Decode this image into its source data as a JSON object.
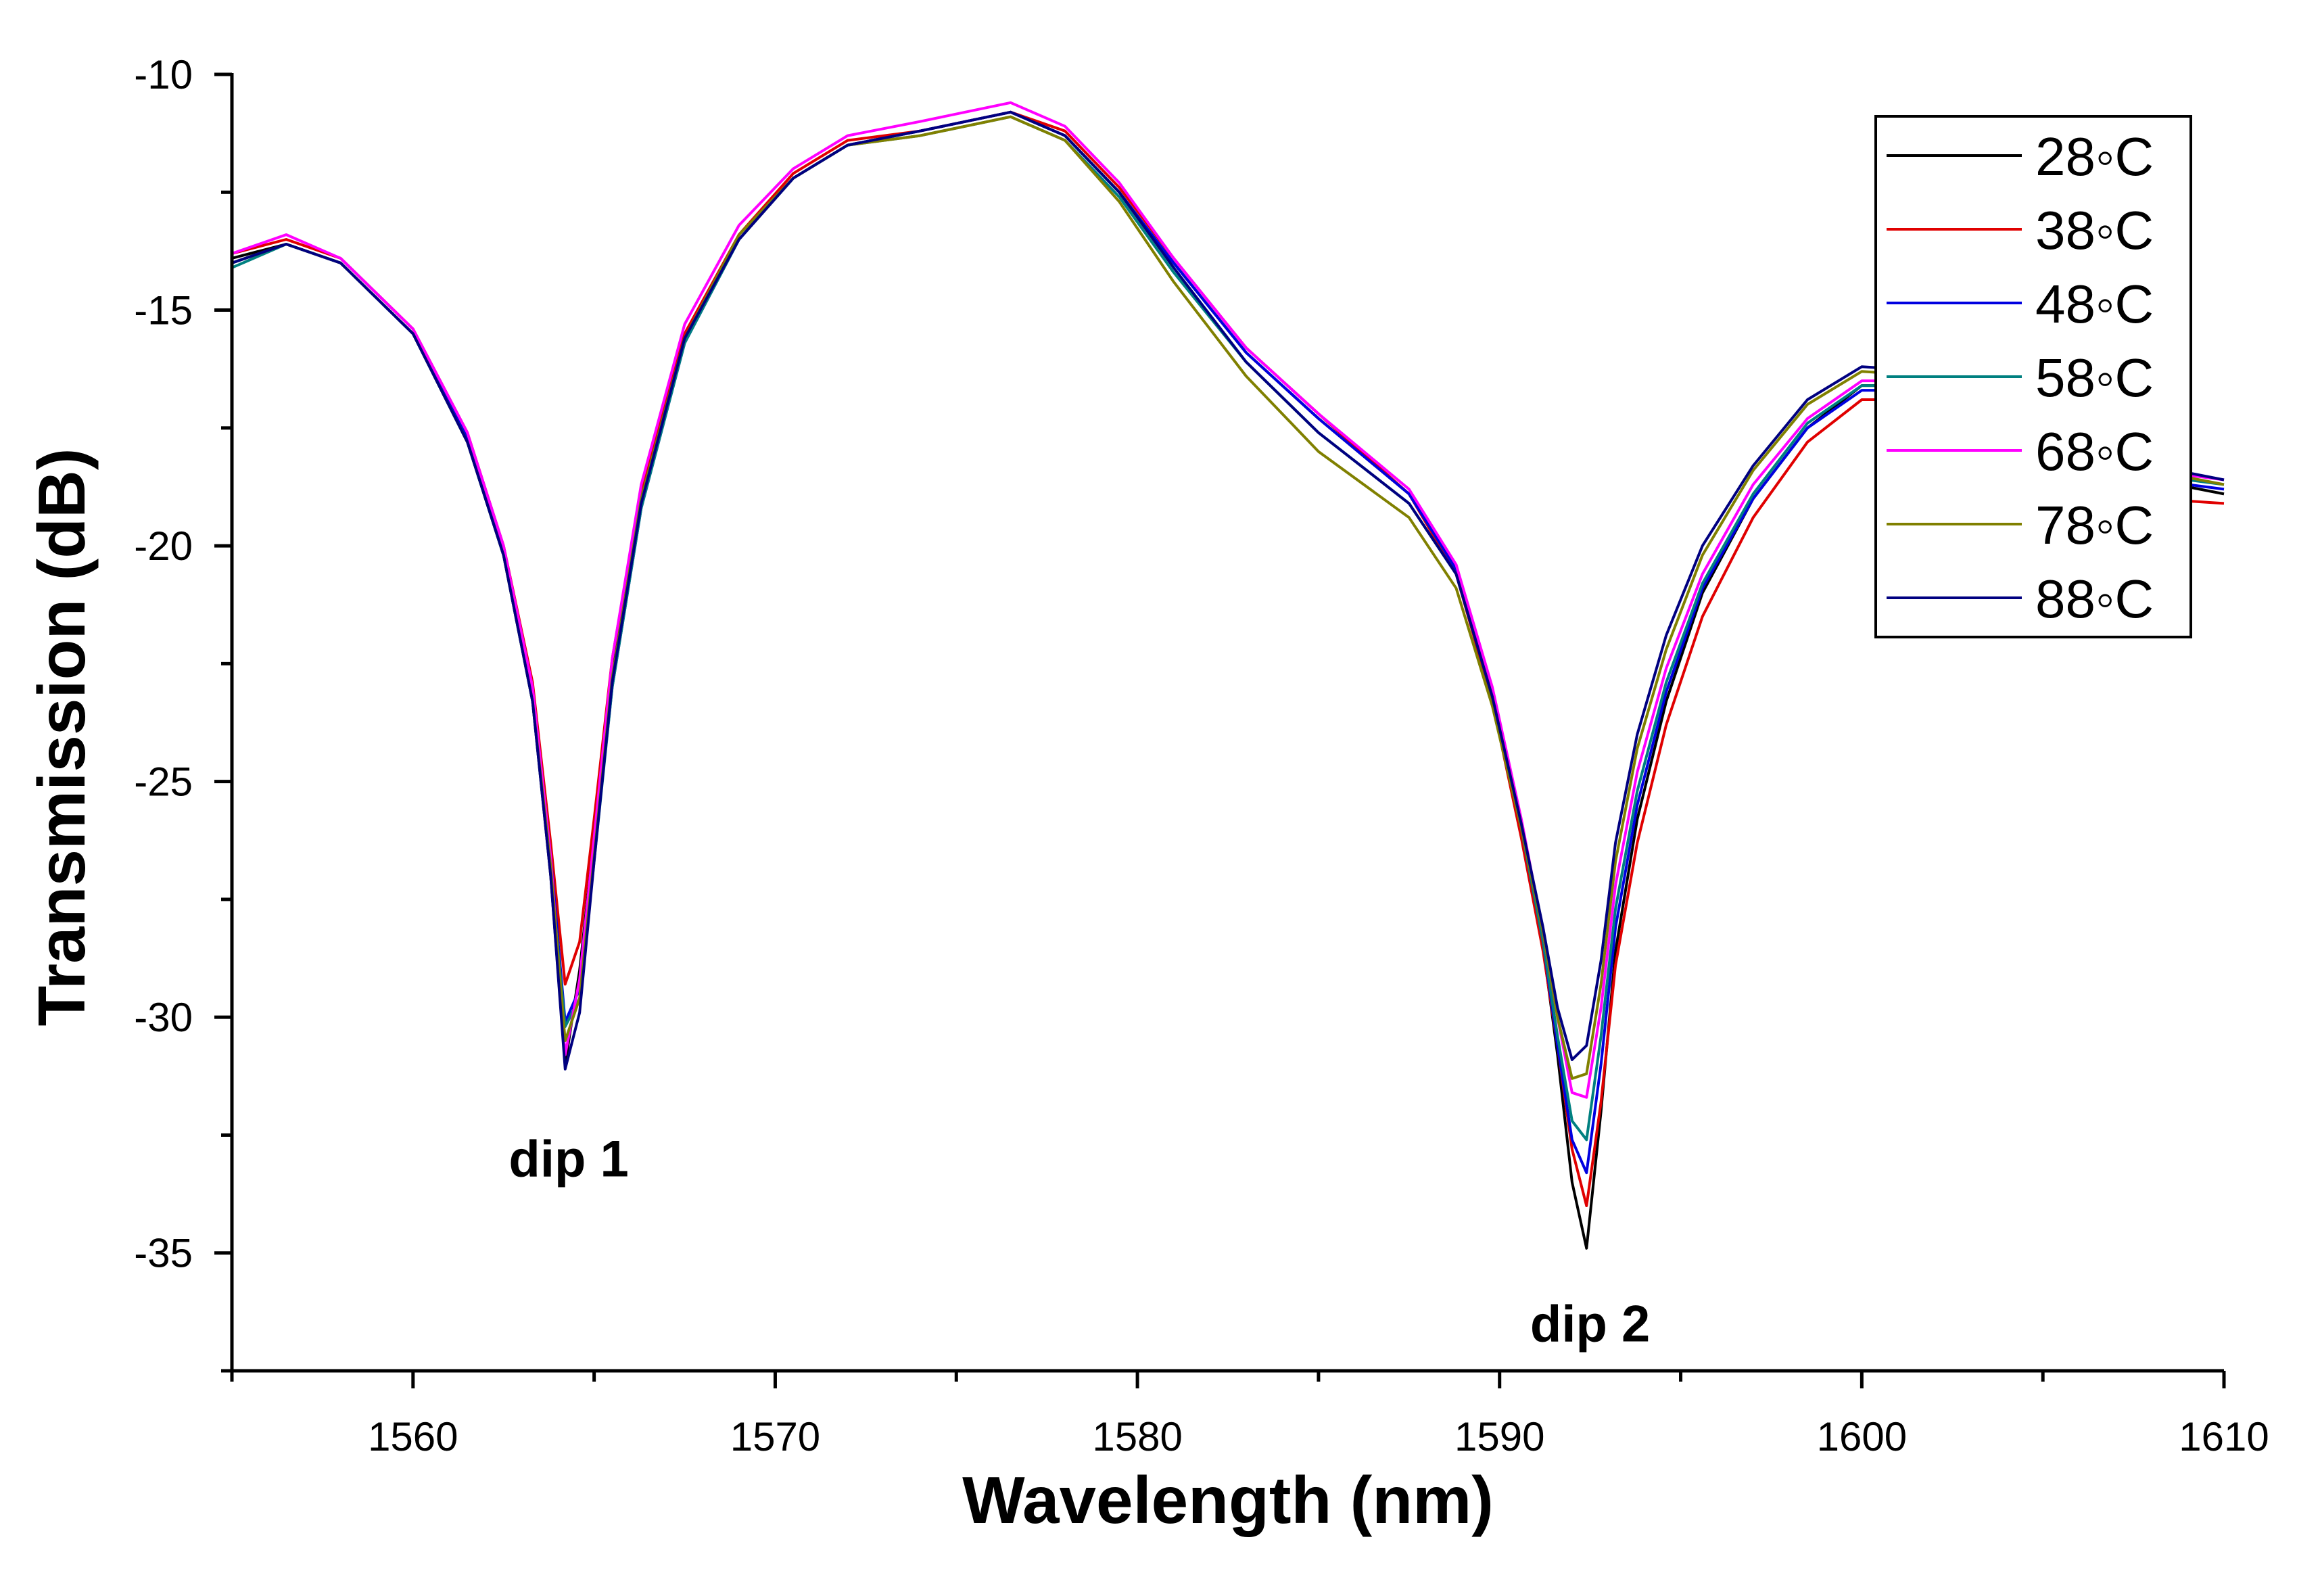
{
  "chart_data": {
    "type": "line",
    "title": "",
    "xlabel": "Wavelength (nm)",
    "ylabel": "Transmission (dB)",
    "xlim": [
      1555,
      1610
    ],
    "ylim": [
      -37.5,
      -10
    ],
    "xticks": [
      "1560",
      "1570",
      "1580",
      "1590",
      "1600",
      "1610"
    ],
    "yticks": [
      "-10",
      "-15",
      "-20",
      "-25",
      "-30",
      "-35"
    ],
    "xtick_values": [
      1560,
      1570,
      1580,
      1590,
      1600,
      1610
    ],
    "ytick_values": [
      -10,
      -15,
      -20,
      -25,
      -30,
      -35
    ],
    "legend_position": "top-right",
    "annotations": [
      {
        "text": "dip 1",
        "x": 1564.3,
        "y": -33.0
      },
      {
        "text": "dip 2",
        "x": 1592.5,
        "y": -36.5
      }
    ],
    "x": [
      1555,
      1556.5,
      1558,
      1560,
      1561.5,
      1562.5,
      1563.3,
      1563.8,
      1564.2,
      1564.6,
      1565.0,
      1565.5,
      1566.3,
      1567.5,
      1569,
      1570.5,
      1572,
      1574,
      1576.5,
      1578,
      1579.5,
      1581,
      1583,
      1585,
      1587.5,
      1588.8,
      1589.8,
      1590.6,
      1591.2,
      1591.6,
      1592.0,
      1592.4,
      1592.8,
      1593.2,
      1593.8,
      1594.6,
      1595.6,
      1597,
      1598.5,
      1600,
      1602,
      1604,
      1606,
      1608,
      1610
    ],
    "series": [
      {
        "name": "28◦C",
        "color": "#000000",
        "values": [
          -13.9,
          -13.6,
          -14.0,
          -15.5,
          -17.8,
          -20.2,
          -23.3,
          -27.0,
          -31.0,
          -29.0,
          -26.2,
          -22.6,
          -19.0,
          -15.6,
          -13.5,
          -12.2,
          -11.5,
          -11.2,
          -10.8,
          -11.3,
          -12.5,
          -14.0,
          -15.9,
          -17.3,
          -18.9,
          -20.5,
          -23.2,
          -26.0,
          -28.5,
          -30.8,
          -33.5,
          -34.9,
          -32.0,
          -28.6,
          -25.8,
          -23.3,
          -21.0,
          -19.0,
          -17.5,
          -16.6,
          -16.6,
          -17.2,
          -17.9,
          -18.6,
          -18.9
        ]
      },
      {
        "name": "38◦C",
        "color": "#e00000",
        "values": [
          -13.8,
          -13.5,
          -13.9,
          -15.4,
          -17.6,
          -20.0,
          -22.9,
          -26.3,
          -29.3,
          -28.4,
          -25.8,
          -22.4,
          -18.8,
          -15.5,
          -13.4,
          -12.1,
          -11.4,
          -11.2,
          -10.8,
          -11.2,
          -12.4,
          -13.9,
          -15.8,
          -17.2,
          -18.9,
          -20.6,
          -23.3,
          -26.2,
          -28.6,
          -30.6,
          -32.8,
          -34.0,
          -31.8,
          -28.9,
          -26.3,
          -23.8,
          -21.5,
          -19.4,
          -17.8,
          -16.9,
          -16.9,
          -17.6,
          -18.4,
          -19.0,
          -19.1
        ]
      },
      {
        "name": "48◦C",
        "color": "#0000e0",
        "values": [
          -14.0,
          -13.6,
          -14.0,
          -15.5,
          -17.7,
          -20.1,
          -23.1,
          -26.6,
          -30.1,
          -29.4,
          -26.6,
          -23.0,
          -19.2,
          -15.7,
          -13.5,
          -12.2,
          -11.5,
          -11.2,
          -10.8,
          -11.3,
          -12.5,
          -14.0,
          -15.9,
          -17.3,
          -18.9,
          -20.5,
          -23.2,
          -26.0,
          -28.4,
          -30.6,
          -32.6,
          -33.3,
          -31.0,
          -28.1,
          -25.5,
          -23.1,
          -20.9,
          -19.0,
          -17.5,
          -16.7,
          -16.7,
          -17.3,
          -18.0,
          -18.6,
          -18.8
        ]
      },
      {
        "name": "58◦C",
        "color": "#008080",
        "values": [
          -14.1,
          -13.6,
          -14.0,
          -15.5,
          -17.8,
          -20.2,
          -23.3,
          -26.9,
          -30.2,
          -29.6,
          -26.7,
          -23.0,
          -19.2,
          -15.7,
          -13.5,
          -12.2,
          -11.5,
          -11.3,
          -10.9,
          -11.4,
          -12.6,
          -14.2,
          -16.1,
          -17.6,
          -19.1,
          -20.6,
          -23.2,
          -26.0,
          -28.4,
          -30.4,
          -32.2,
          -32.6,
          -30.4,
          -27.7,
          -25.2,
          -22.9,
          -20.8,
          -18.9,
          -17.4,
          -16.6,
          -16.6,
          -17.2,
          -17.9,
          -18.5,
          -18.7
        ]
      },
      {
        "name": "68◦C",
        "color": "#ff00ff",
        "values": [
          -13.8,
          -13.4,
          -13.9,
          -15.4,
          -17.6,
          -20.0,
          -23.0,
          -26.6,
          -30.8,
          -29.2,
          -26.2,
          -22.4,
          -18.7,
          -15.3,
          -13.2,
          -12.0,
          -11.3,
          -11.0,
          -10.6,
          -11.1,
          -12.3,
          -13.9,
          -15.8,
          -17.2,
          -18.8,
          -20.4,
          -23.0,
          -25.8,
          -28.2,
          -30.0,
          -31.6,
          -31.7,
          -29.8,
          -27.2,
          -24.8,
          -22.6,
          -20.6,
          -18.7,
          -17.3,
          -16.5,
          -16.5,
          -17.0,
          -17.7,
          -18.4,
          -18.6
        ]
      },
      {
        "name": "78◦C",
        "color": "#808000",
        "values": [
          -14.0,
          -13.6,
          -14.0,
          -15.5,
          -17.8,
          -20.2,
          -23.3,
          -26.8,
          -30.5,
          -29.6,
          -26.6,
          -22.8,
          -19.0,
          -15.6,
          -13.4,
          -12.2,
          -11.5,
          -11.3,
          -10.9,
          -11.4,
          -12.7,
          -14.4,
          -16.4,
          -18.0,
          -19.4,
          -20.9,
          -23.4,
          -26.0,
          -28.2,
          -30.0,
          -31.3,
          -31.2,
          -29.3,
          -26.7,
          -24.3,
          -22.2,
          -20.2,
          -18.4,
          -17.0,
          -16.3,
          -16.4,
          -17.0,
          -17.7,
          -18.4,
          -18.7
        ]
      },
      {
        "name": "88◦C",
        "color": "#000080",
        "values": [
          -14.0,
          -13.6,
          -14.0,
          -15.5,
          -17.8,
          -20.2,
          -23.3,
          -27.0,
          -31.1,
          -29.9,
          -26.7,
          -22.9,
          -19.1,
          -15.6,
          -13.5,
          -12.2,
          -11.5,
          -11.2,
          -10.8,
          -11.3,
          -12.5,
          -14.1,
          -16.1,
          -17.6,
          -19.1,
          -20.6,
          -23.2,
          -25.9,
          -28.1,
          -29.8,
          -30.9,
          -30.6,
          -28.8,
          -26.3,
          -24.0,
          -21.9,
          -20.0,
          -18.3,
          -16.9,
          -16.2,
          -16.3,
          -16.9,
          -17.6,
          -18.3,
          -18.6
        ]
      }
    ]
  }
}
